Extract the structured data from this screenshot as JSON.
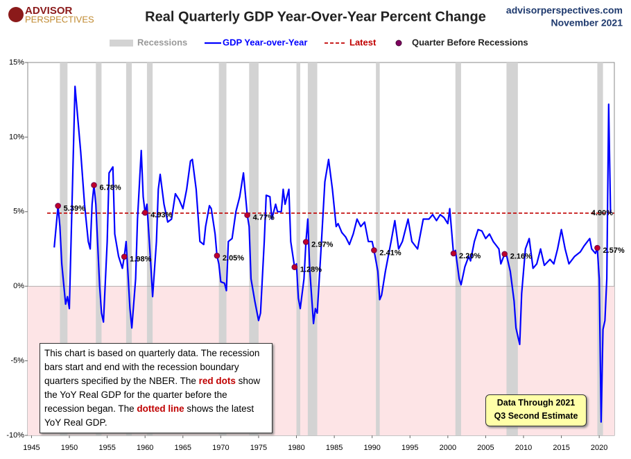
{
  "logo": {
    "line1": "ADVISOR",
    "line2": "PERSPECTIVES"
  },
  "source": {
    "site": "advisorperspectives.com",
    "date": "November 2021"
  },
  "chart_data": {
    "type": "line",
    "title": "Real Quarterly GDP Year-Over-Year Percent Change",
    "xlim": [
      1944.5,
      2022
    ],
    "xticks": [
      1945,
      1950,
      1955,
      1960,
      1965,
      1970,
      1975,
      1980,
      1985,
      1990,
      1995,
      2000,
      2005,
      2010,
      2015,
      2020
    ],
    "ylim": [
      -10,
      15
    ],
    "yticks": [
      {
        "value": -10,
        "label": "-10%"
      },
      {
        "value": -5,
        "label": "-5%"
      },
      {
        "value": 0,
        "label": "0%"
      },
      {
        "value": 5,
        "label": "5%"
      },
      {
        "value": 10,
        "label": "10%"
      },
      {
        "value": 15,
        "label": "15%"
      }
    ],
    "negative_shade": "#fde4e6",
    "recessions": {
      "name": "Recessions",
      "color": "#d3d3d3",
      "ranges": [
        [
          1948.75,
          1949.75
        ],
        [
          1953.5,
          1954.25
        ],
        [
          1957.5,
          1958.25
        ],
        [
          1960.25,
          1961.0
        ],
        [
          1969.75,
          1970.75
        ],
        [
          1973.75,
          1975.0
        ],
        [
          1980.0,
          1980.5
        ],
        [
          1981.5,
          1982.75
        ],
        [
          1990.5,
          1991.0
        ],
        [
          2001.0,
          2001.75
        ],
        [
          2007.75,
          2009.25
        ],
        [
          2019.75,
          2020.5
        ]
      ]
    },
    "series": [
      {
        "name": "GDP Year-over-Year",
        "color": "#0000ff",
        "x": [
          1948.0,
          1948.5,
          1948.75,
          1949.0,
          1949.5,
          1949.75,
          1950.0,
          1950.75,
          1951.5,
          1952.0,
          1952.5,
          1952.75,
          1953.0,
          1953.25,
          1953.5,
          1954.0,
          1954.25,
          1954.5,
          1955.0,
          1955.25,
          1955.75,
          1956.0,
          1956.5,
          1957.0,
          1957.25,
          1957.5,
          1958.0,
          1958.25,
          1958.75,
          1959.0,
          1959.5,
          1959.75,
          1960.0,
          1960.25,
          1960.75,
          1961.0,
          1961.5,
          1961.75,
          1962.0,
          1962.5,
          1963.0,
          1963.5,
          1964.0,
          1964.5,
          1965.0,
          1965.5,
          1966.0,
          1966.25,
          1966.75,
          1967.25,
          1967.75,
          1968.0,
          1968.5,
          1968.75,
          1969.25,
          1969.5,
          1969.75,
          1970.0,
          1970.5,
          1970.75,
          1971.0,
          1971.5,
          1972.0,
          1972.5,
          1973.0,
          1973.5,
          1973.75,
          1974.0,
          1974.5,
          1975.0,
          1975.25,
          1975.75,
          1976.0,
          1976.5,
          1976.75,
          1977.25,
          1977.5,
          1978.0,
          1978.25,
          1978.5,
          1979.0,
          1979.25,
          1979.75,
          1980.0,
          1980.25,
          1980.5,
          1981.0,
          1981.25,
          1981.5,
          1981.75,
          1982.25,
          1982.5,
          1982.75,
          1983.25,
          1983.75,
          1984.25,
          1984.75,
          1985.25,
          1985.5,
          1986.0,
          1986.5,
          1987.0,
          1987.5,
          1988.0,
          1988.5,
          1989.0,
          1989.5,
          1990.0,
          1990.25,
          1990.75,
          1991.0,
          1991.25,
          1991.75,
          1992.5,
          1993.0,
          1993.5,
          1994.0,
          1994.75,
          1995.25,
          1996.0,
          1996.75,
          1997.5,
          1998.0,
          1998.5,
          1999.0,
          1999.5,
          2000.0,
          2000.25,
          2000.75,
          2001.0,
          2001.5,
          2001.75,
          2002.25,
          2002.75,
          2003.0,
          2003.5,
          2004.0,
          2004.5,
          2005.0,
          2005.5,
          2006.0,
          2006.75,
          2007.0,
          2007.5,
          2007.75,
          2008.25,
          2008.75,
          2009.0,
          2009.5,
          2009.75,
          2010.25,
          2010.75,
          2011.25,
          2011.75,
          2012.25,
          2012.75,
          2013.5,
          2014.0,
          2014.5,
          2015.0,
          2015.5,
          2016.0,
          2016.75,
          2017.5,
          2018.0,
          2018.75,
          2019.0,
          2019.5,
          2019.75,
          2020.0,
          2020.25,
          2020.5,
          2020.75,
          2021.0,
          2021.25,
          2021.5
        ],
        "values": [
          2.6,
          5.39,
          4.0,
          1.5,
          -1.2,
          -0.7,
          -1.5,
          13.4,
          9.0,
          5.5,
          3.0,
          2.5,
          5.5,
          6.78,
          5.5,
          0.0,
          -1.8,
          -2.4,
          3.0,
          7.6,
          8.0,
          3.5,
          2.0,
          1.2,
          1.98,
          3.0,
          -1.5,
          -2.8,
          0.5,
          4.5,
          9.1,
          6.0,
          4.93,
          5.5,
          1.5,
          -0.7,
          3.0,
          6.5,
          7.5,
          5.5,
          4.3,
          4.5,
          6.2,
          5.8,
          5.2,
          6.5,
          8.4,
          8.5,
          6.5,
          3.0,
          2.8,
          4.0,
          5.4,
          5.2,
          3.5,
          2.05,
          1.5,
          0.3,
          0.2,
          -0.3,
          3.0,
          3.2,
          5.0,
          6.0,
          7.6,
          4.77,
          4.0,
          0.5,
          -1.0,
          -2.3,
          -1.8,
          3.0,
          6.1,
          6.0,
          4.5,
          5.5,
          5.0,
          5.0,
          6.5,
          5.5,
          6.5,
          3.0,
          1.28,
          1.5,
          -0.8,
          -1.5,
          0.5,
          2.97,
          4.5,
          1.2,
          -2.5,
          -1.5,
          -1.8,
          2.5,
          7.0,
          8.5,
          6.5,
          4.0,
          4.2,
          3.6,
          3.3,
          2.8,
          3.5,
          4.5,
          4.0,
          4.3,
          3.0,
          3.0,
          2.41,
          1.0,
          -0.9,
          -0.6,
          1.0,
          3.0,
          4.4,
          2.5,
          3.0,
          4.5,
          3.0,
          2.5,
          4.5,
          4.5,
          4.8,
          4.4,
          4.8,
          4.6,
          4.2,
          5.2,
          2.2,
          2.4,
          0.5,
          0.1,
          1.3,
          2.0,
          1.7,
          3.0,
          3.8,
          3.7,
          3.2,
          3.5,
          3.0,
          2.5,
          1.5,
          2.16,
          2.1,
          1.0,
          -1.0,
          -2.8,
          -3.9,
          -0.5,
          2.5,
          3.2,
          1.2,
          1.5,
          2.5,
          1.4,
          1.8,
          1.5,
          2.5,
          3.8,
          2.5,
          1.5,
          2.0,
          2.3,
          2.7,
          3.2,
          2.5,
          2.2,
          2.57,
          0.5,
          -9.1,
          -2.9,
          -2.3,
          0.5,
          12.2,
          4.9
        ]
      }
    ],
    "latest": {
      "name": "Latest",
      "color": "#c00000",
      "value": 4.9,
      "label": "4.90%"
    },
    "markers": {
      "name": "Quarter Before Recessions",
      "color": "#c0002a",
      "x": [
        1948.5,
        1953.25,
        1957.25,
        1960.0,
        1969.5,
        1973.5,
        1979.75,
        1981.25,
        1990.25,
        2000.75,
        2007.5,
        2019.75
      ],
      "values": [
        5.39,
        6.78,
        1.98,
        4.93,
        2.05,
        4.77,
        1.28,
        2.97,
        2.41,
        2.2,
        2.16,
        2.57
      ],
      "value_labels": [
        "5.39%",
        "6.78%",
        "1.98%",
        "4.93%",
        "2.05%",
        "4.77%",
        "1.28%",
        "2.97%",
        "2.41%",
        "2.20%",
        "2.16%",
        "2.57%"
      ]
    },
    "note": [
      "This chart is based on quarterly data. The recession bars start and end with the recession boundary quarters specified by the  NBER. The ",
      "red dots",
      " show the YoY Real GDP for the quarter  before the recession began. The ",
      "dotted line",
      "  shows the latest YoY Real GDP."
    ],
    "data_through": [
      "Data Through 2021",
      "Q3 Second Estimate"
    ]
  }
}
